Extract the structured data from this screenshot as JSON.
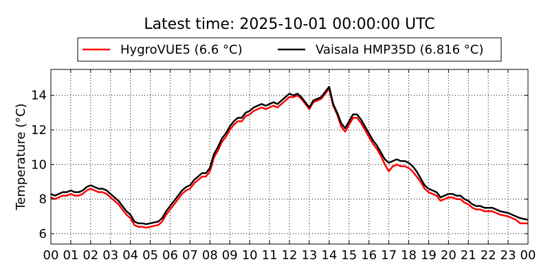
{
  "chart_data": {
    "type": "line",
    "title": "Latest time: 2025-10-01 00:00:00 UTC",
    "xlabel": "",
    "ylabel": "Temperature (°C)",
    "xlim": [
      0,
      24
    ],
    "ylim": [
      5.4,
      15.5
    ],
    "x_ticks": [
      0,
      1,
      2,
      3,
      4,
      5,
      6,
      7,
      8,
      9,
      10,
      11,
      12,
      13,
      14,
      15,
      16,
      17,
      18,
      19,
      20,
      21,
      22,
      23,
      24
    ],
    "x_tick_labels": [
      "00",
      "01",
      "02",
      "03",
      "04",
      "05",
      "06",
      "07",
      "08",
      "09",
      "10",
      "11",
      "12",
      "13",
      "14",
      "15",
      "16",
      "17",
      "18",
      "19",
      "20",
      "21",
      "22",
      "23",
      "00"
    ],
    "y_ticks": [
      6,
      8,
      10,
      12,
      14
    ],
    "y_tick_labels": [
      "6",
      "8",
      "10",
      "12",
      "14"
    ],
    "grid": true,
    "legend_position": "top",
    "series": [
      {
        "name": "HygroVUE5 (6.6 °C)",
        "color": "#ff0000",
        "points": [
          [
            0,
            8.1
          ],
          [
            0.2,
            8.0
          ],
          [
            0.4,
            8.1
          ],
          [
            0.6,
            8.2
          ],
          [
            0.8,
            8.2
          ],
          [
            1.0,
            8.3
          ],
          [
            1.2,
            8.2
          ],
          [
            1.4,
            8.2
          ],
          [
            1.6,
            8.3
          ],
          [
            1.8,
            8.5
          ],
          [
            2.0,
            8.6
          ],
          [
            2.2,
            8.5
          ],
          [
            2.4,
            8.4
          ],
          [
            2.6,
            8.4
          ],
          [
            2.8,
            8.3
          ],
          [
            3.0,
            8.1
          ],
          [
            3.2,
            7.9
          ],
          [
            3.4,
            7.7
          ],
          [
            3.6,
            7.4
          ],
          [
            3.8,
            7.1
          ],
          [
            4.0,
            6.9
          ],
          [
            4.2,
            6.5
          ],
          [
            4.4,
            6.4
          ],
          [
            4.6,
            6.4
          ],
          [
            4.8,
            6.35
          ],
          [
            5.0,
            6.4
          ],
          [
            5.2,
            6.45
          ],
          [
            5.4,
            6.5
          ],
          [
            5.6,
            6.7
          ],
          [
            5.8,
            7.1
          ],
          [
            6.0,
            7.4
          ],
          [
            6.2,
            7.7
          ],
          [
            6.4,
            8.0
          ],
          [
            6.6,
            8.3
          ],
          [
            6.8,
            8.5
          ],
          [
            7.0,
            8.6
          ],
          [
            7.2,
            8.9
          ],
          [
            7.4,
            9.1
          ],
          [
            7.6,
            9.3
          ],
          [
            7.8,
            9.3
          ],
          [
            8.0,
            9.6
          ],
          [
            8.2,
            10.4
          ],
          [
            8.4,
            10.8
          ],
          [
            8.6,
            11.3
          ],
          [
            8.8,
            11.6
          ],
          [
            9.0,
            12.0
          ],
          [
            9.2,
            12.3
          ],
          [
            9.4,
            12.5
          ],
          [
            9.6,
            12.5
          ],
          [
            9.8,
            12.8
          ],
          [
            10.0,
            12.9
          ],
          [
            10.2,
            13.1
          ],
          [
            10.4,
            13.2
          ],
          [
            10.6,
            13.3
          ],
          [
            10.8,
            13.2
          ],
          [
            11.0,
            13.3
          ],
          [
            11.2,
            13.4
          ],
          [
            11.4,
            13.3
          ],
          [
            11.6,
            13.5
          ],
          [
            11.8,
            13.7
          ],
          [
            12.0,
            13.9
          ],
          [
            12.2,
            13.9
          ],
          [
            12.4,
            14.0
          ],
          [
            12.6,
            13.8
          ],
          [
            12.8,
            13.5
          ],
          [
            13.0,
            13.2
          ],
          [
            13.2,
            13.6
          ],
          [
            13.4,
            13.7
          ],
          [
            13.6,
            13.8
          ],
          [
            13.8,
            14.1
          ],
          [
            14.0,
            14.4
          ],
          [
            14.2,
            13.4
          ],
          [
            14.4,
            12.9
          ],
          [
            14.6,
            12.2
          ],
          [
            14.8,
            11.9
          ],
          [
            15.0,
            12.3
          ],
          [
            15.2,
            12.7
          ],
          [
            15.4,
            12.7
          ],
          [
            15.6,
            12.4
          ],
          [
            15.8,
            12.0
          ],
          [
            16.0,
            11.6
          ],
          [
            16.2,
            11.2
          ],
          [
            16.4,
            10.9
          ],
          [
            16.6,
            10.5
          ],
          [
            16.8,
            10.0
          ],
          [
            17.0,
            9.6
          ],
          [
            17.2,
            9.9
          ],
          [
            17.4,
            10.0
          ],
          [
            17.6,
            9.9
          ],
          [
            17.8,
            9.9
          ],
          [
            18.0,
            9.8
          ],
          [
            18.2,
            9.6
          ],
          [
            18.4,
            9.3
          ],
          [
            18.6,
            9.0
          ],
          [
            18.8,
            8.6
          ],
          [
            19.0,
            8.4
          ],
          [
            19.2,
            8.3
          ],
          [
            19.4,
            8.2
          ],
          [
            19.6,
            7.9
          ],
          [
            19.8,
            8.0
          ],
          [
            20.0,
            8.1
          ],
          [
            20.2,
            8.1
          ],
          [
            20.4,
            8.0
          ],
          [
            20.6,
            8.0
          ],
          [
            20.8,
            7.8
          ],
          [
            21.0,
            7.7
          ],
          [
            21.2,
            7.5
          ],
          [
            21.4,
            7.4
          ],
          [
            21.6,
            7.4
          ],
          [
            21.8,
            7.3
          ],
          [
            22.0,
            7.3
          ],
          [
            22.2,
            7.3
          ],
          [
            22.4,
            7.2
          ],
          [
            22.6,
            7.1
          ],
          [
            22.8,
            7.05
          ],
          [
            23.0,
            7.0
          ],
          [
            23.2,
            6.9
          ],
          [
            23.4,
            6.8
          ],
          [
            23.6,
            6.6
          ],
          [
            23.8,
            6.6
          ],
          [
            24.0,
            6.6
          ]
        ]
      },
      {
        "name": "Vaisala HMP35D (6.816 °C)",
        "color": "#000000",
        "points": [
          [
            0,
            8.3
          ],
          [
            0.2,
            8.2
          ],
          [
            0.4,
            8.3
          ],
          [
            0.6,
            8.4
          ],
          [
            0.8,
            8.4
          ],
          [
            1.0,
            8.5
          ],
          [
            1.2,
            8.4
          ],
          [
            1.4,
            8.4
          ],
          [
            1.6,
            8.5
          ],
          [
            1.8,
            8.7
          ],
          [
            2.0,
            8.8
          ],
          [
            2.2,
            8.7
          ],
          [
            2.4,
            8.6
          ],
          [
            2.6,
            8.6
          ],
          [
            2.8,
            8.5
          ],
          [
            3.0,
            8.3
          ],
          [
            3.2,
            8.1
          ],
          [
            3.4,
            7.9
          ],
          [
            3.6,
            7.6
          ],
          [
            3.8,
            7.3
          ],
          [
            4.0,
            7.1
          ],
          [
            4.2,
            6.7
          ],
          [
            4.4,
            6.6
          ],
          [
            4.6,
            6.6
          ],
          [
            4.8,
            6.55
          ],
          [
            5.0,
            6.6
          ],
          [
            5.2,
            6.65
          ],
          [
            5.4,
            6.7
          ],
          [
            5.6,
            6.9
          ],
          [
            5.8,
            7.3
          ],
          [
            6.0,
            7.6
          ],
          [
            6.2,
            7.9
          ],
          [
            6.4,
            8.2
          ],
          [
            6.6,
            8.5
          ],
          [
            6.8,
            8.7
          ],
          [
            7.0,
            8.8
          ],
          [
            7.2,
            9.1
          ],
          [
            7.4,
            9.3
          ],
          [
            7.6,
            9.5
          ],
          [
            7.8,
            9.5
          ],
          [
            8.0,
            9.8
          ],
          [
            8.2,
            10.6
          ],
          [
            8.4,
            11.0
          ],
          [
            8.6,
            11.5
          ],
          [
            8.8,
            11.8
          ],
          [
            9.0,
            12.2
          ],
          [
            9.2,
            12.5
          ],
          [
            9.4,
            12.7
          ],
          [
            9.6,
            12.7
          ],
          [
            9.8,
            13.0
          ],
          [
            10.0,
            13.1
          ],
          [
            10.2,
            13.3
          ],
          [
            10.4,
            13.4
          ],
          [
            10.6,
            13.5
          ],
          [
            10.8,
            13.4
          ],
          [
            11.0,
            13.5
          ],
          [
            11.2,
            13.6
          ],
          [
            11.4,
            13.5
          ],
          [
            11.6,
            13.7
          ],
          [
            11.8,
            13.9
          ],
          [
            12.0,
            14.1
          ],
          [
            12.2,
            14.0
          ],
          [
            12.4,
            14.1
          ],
          [
            12.6,
            13.9
          ],
          [
            12.8,
            13.6
          ],
          [
            13.0,
            13.3
          ],
          [
            13.2,
            13.7
          ],
          [
            13.4,
            13.8
          ],
          [
            13.6,
            13.9
          ],
          [
            13.8,
            14.2
          ],
          [
            14.0,
            14.5
          ],
          [
            14.2,
            13.5
          ],
          [
            14.4,
            13.0
          ],
          [
            14.6,
            12.4
          ],
          [
            14.8,
            12.1
          ],
          [
            15.0,
            12.5
          ],
          [
            15.2,
            12.9
          ],
          [
            15.4,
            12.9
          ],
          [
            15.6,
            12.6
          ],
          [
            15.8,
            12.2
          ],
          [
            16.0,
            11.8
          ],
          [
            16.2,
            11.4
          ],
          [
            16.4,
            11.1
          ],
          [
            16.6,
            10.7
          ],
          [
            16.8,
            10.3
          ],
          [
            17.0,
            10.1
          ],
          [
            17.2,
            10.2
          ],
          [
            17.4,
            10.3
          ],
          [
            17.6,
            10.2
          ],
          [
            17.8,
            10.2
          ],
          [
            18.0,
            10.1
          ],
          [
            18.2,
            9.9
          ],
          [
            18.4,
            9.6
          ],
          [
            18.6,
            9.2
          ],
          [
            18.8,
            8.8
          ],
          [
            19.0,
            8.6
          ],
          [
            19.2,
            8.5
          ],
          [
            19.4,
            8.4
          ],
          [
            19.6,
            8.1
          ],
          [
            19.8,
            8.2
          ],
          [
            20.0,
            8.3
          ],
          [
            20.2,
            8.3
          ],
          [
            20.4,
            8.2
          ],
          [
            20.6,
            8.2
          ],
          [
            20.8,
            8.0
          ],
          [
            21.0,
            7.9
          ],
          [
            21.2,
            7.7
          ],
          [
            21.4,
            7.6
          ],
          [
            21.6,
            7.6
          ],
          [
            21.8,
            7.5
          ],
          [
            22.0,
            7.5
          ],
          [
            22.2,
            7.5
          ],
          [
            22.4,
            7.4
          ],
          [
            22.6,
            7.3
          ],
          [
            22.8,
            7.25
          ],
          [
            23.0,
            7.2
          ],
          [
            23.2,
            7.1
          ],
          [
            23.4,
            7.0
          ],
          [
            23.6,
            6.9
          ],
          [
            23.8,
            6.85
          ],
          [
            24.0,
            6.8
          ]
        ]
      }
    ]
  }
}
